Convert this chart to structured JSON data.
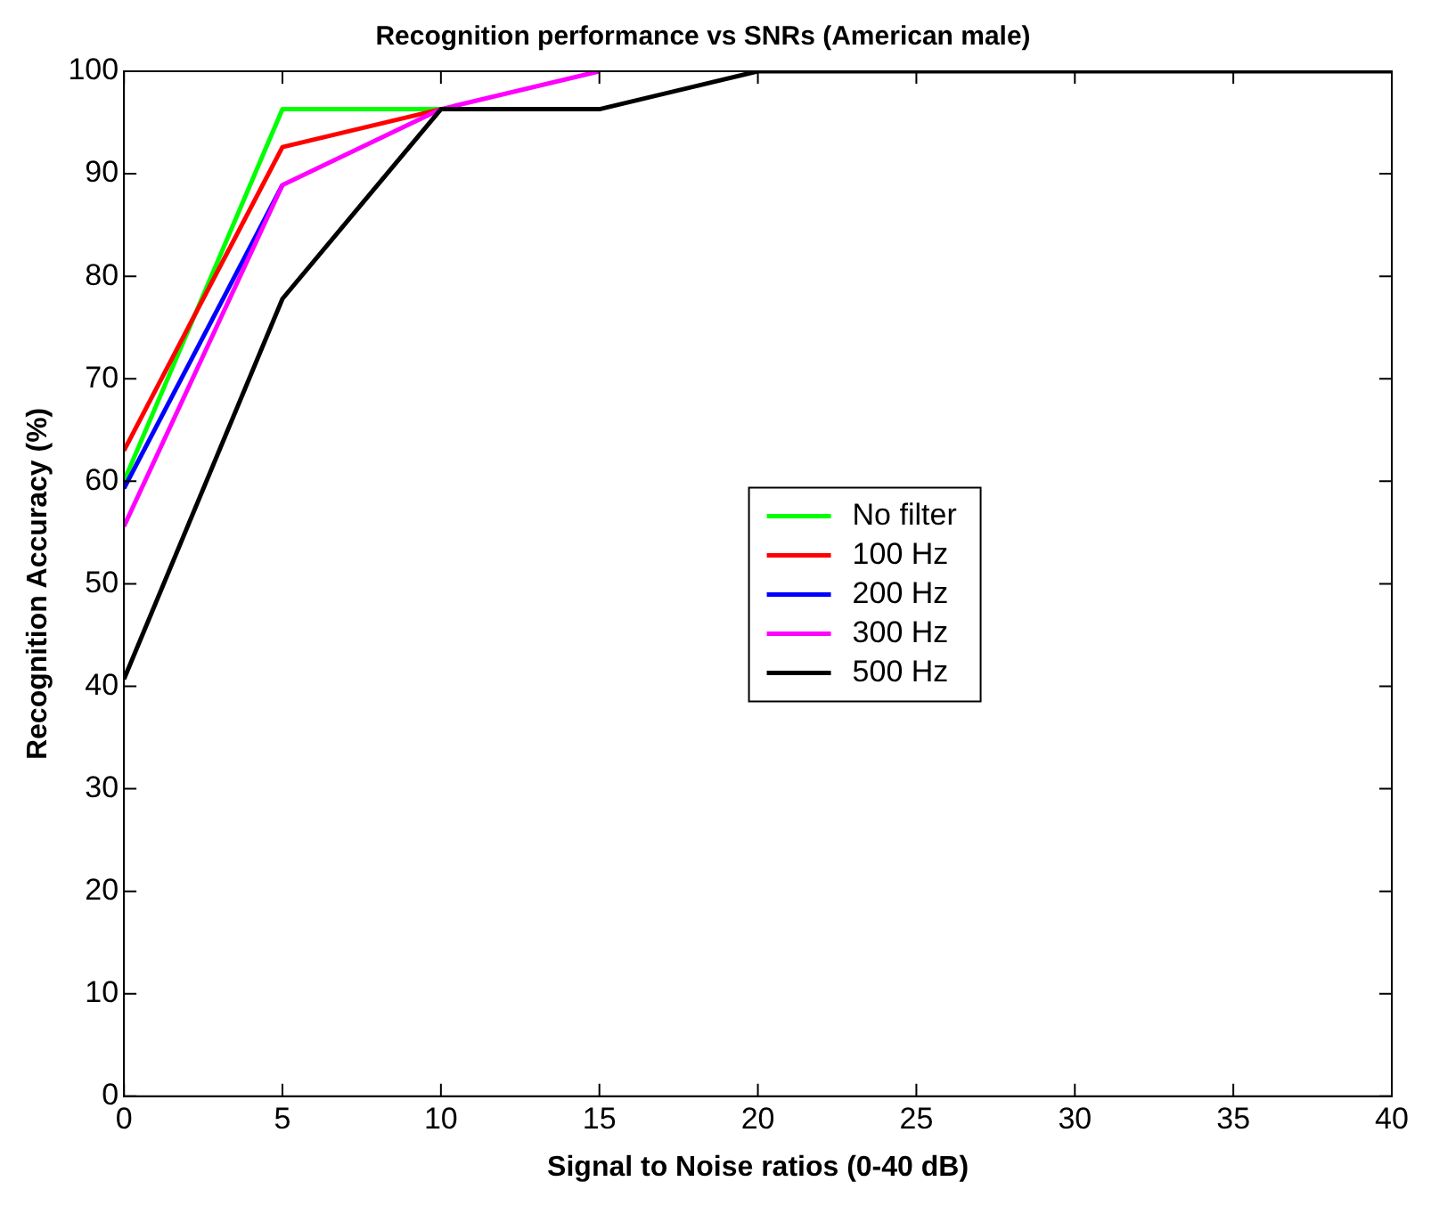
{
  "chart_data": {
    "type": "line",
    "title": "Recognition performance vs SNRs (American male)",
    "xlabel": "Signal to Noise ratios (0-40 dB)",
    "ylabel": "Recognition Accuracy (%)",
    "x": [
      0,
      5,
      10,
      15,
      20,
      25,
      30,
      35,
      40
    ],
    "series": [
      {
        "name": "No filter",
        "color": "#00ff00",
        "values": [
          60,
          96.3,
          96.3,
          null,
          null,
          null,
          null,
          null,
          null
        ]
      },
      {
        "name": "100 Hz",
        "color": "#ff0000",
        "values": [
          63,
          92.6,
          96.3,
          null,
          null,
          null,
          null,
          null,
          null
        ]
      },
      {
        "name": "200 Hz",
        "color": "#0000ff",
        "values": [
          59.3,
          88.9,
          null,
          null,
          null,
          null,
          null,
          null,
          null
        ]
      },
      {
        "name": "300 Hz",
        "color": "#ff00ff",
        "values": [
          55.6,
          88.9,
          96.3,
          100,
          null,
          null,
          null,
          null,
          null
        ]
      },
      {
        "name": "500 Hz",
        "color": "#000000",
        "values": [
          40.7,
          77.8,
          96.3,
          96.3,
          100,
          100,
          100,
          100,
          100
        ]
      }
    ],
    "xlim": [
      0,
      40
    ],
    "xticks": [
      0,
      5,
      10,
      15,
      20,
      25,
      30,
      35,
      40
    ],
    "ylim": [
      0,
      100
    ],
    "yticks": [
      0,
      10,
      20,
      30,
      40,
      50,
      60,
      70,
      80,
      90,
      100
    ],
    "grid": false,
    "legend": "center",
    "marker": "none",
    "line_style": "solid"
  }
}
